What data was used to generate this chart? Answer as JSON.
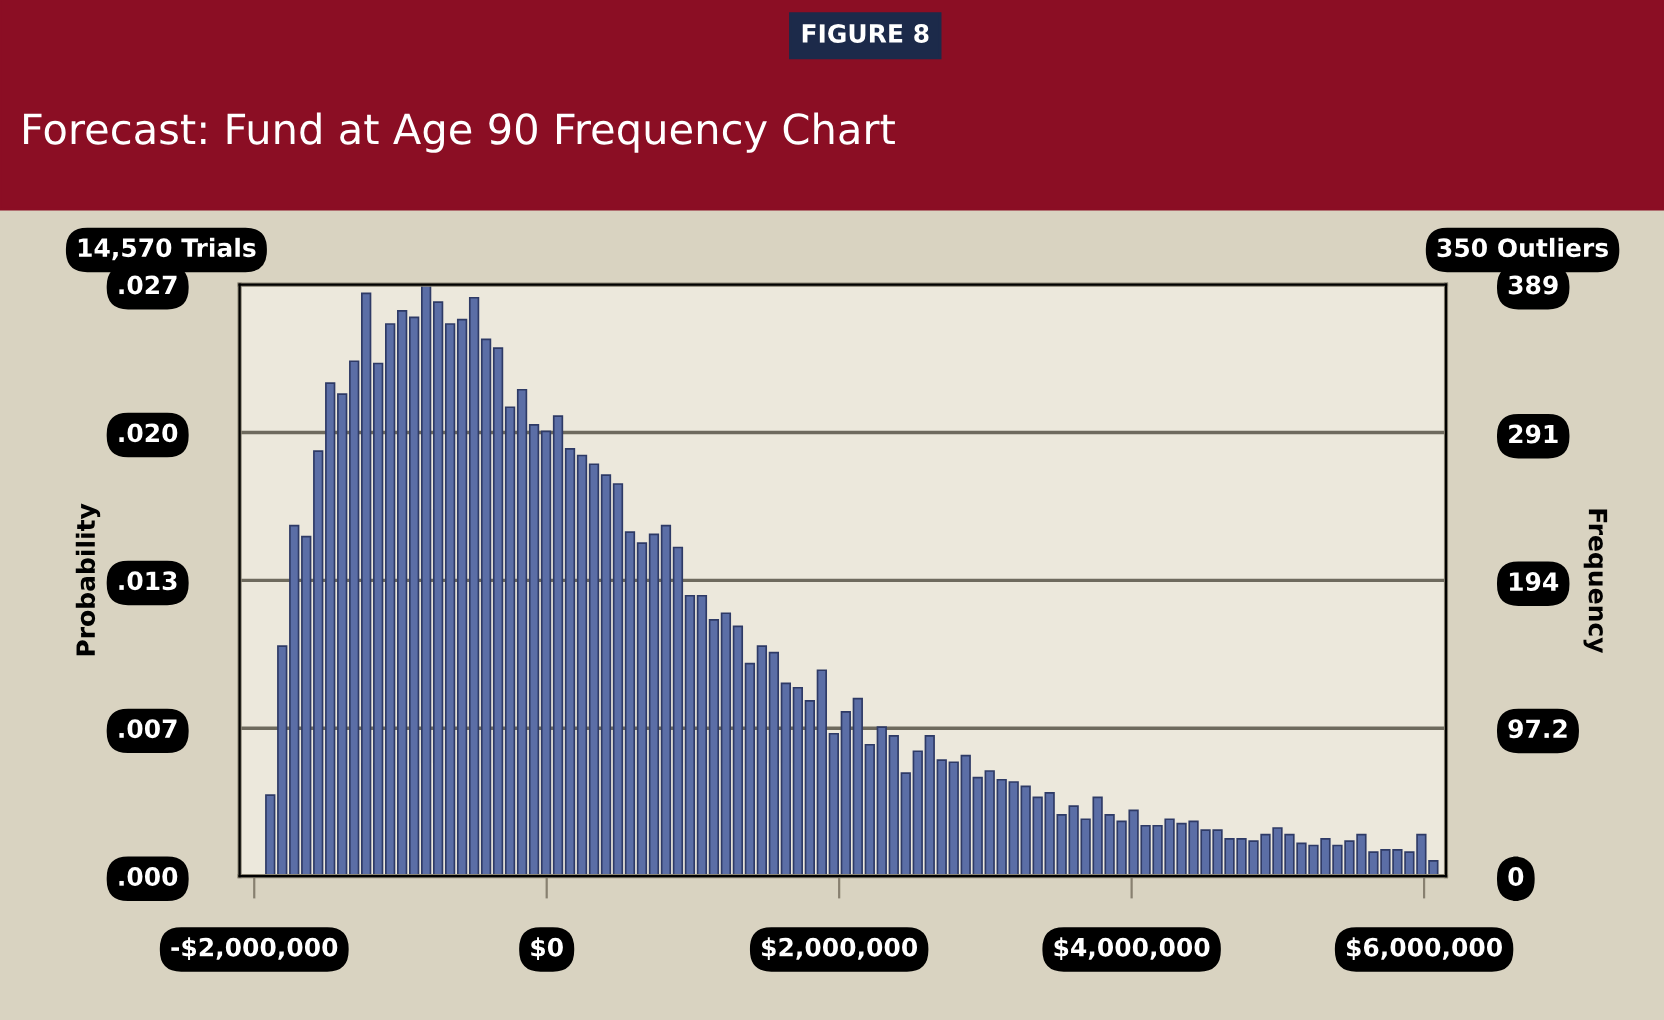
{
  "chart_data": {
    "type": "histogram",
    "title": "Forecast: Fund at Age 90 Frequency Chart",
    "annotations": [
      "FIGURE 8",
      "14,570 Trials",
      "350 Outliers"
    ],
    "ylabel": "Probability",
    "y2label": "Frequency",
    "bins": [
      -1920000,
      -1838000,
      -1756000,
      -1674000,
      -1592000,
      -1510000,
      -1428000,
      -1346000,
      -1264000,
      -1182000,
      -1100000,
      -1018000,
      -936000,
      -854000,
      -772000,
      -690000,
      -608000,
      -526000,
      -444000,
      -362000,
      -280000,
      -198000,
      -116000,
      -34000,
      48000,
      130000,
      212000,
      294000,
      376000,
      458000,
      540000,
      622000,
      704000,
      786000,
      868000,
      950000,
      1032000,
      1114000,
      1196000,
      1278000,
      1360000,
      1442000,
      1524000,
      1606000,
      1688000,
      1770000,
      1852000,
      1934000,
      2016000,
      2098000,
      2180000,
      2262000,
      2344000,
      2426000,
      2508000,
      2590000,
      2672000,
      2754000,
      2836000,
      2918000,
      3000000,
      3082000,
      3164000,
      3246000,
      3328000,
      3410000,
      3492000,
      3574000,
      3656000,
      3738000,
      3820000,
      3902000,
      3984000,
      4066000,
      4148000,
      4230000,
      4312000,
      4394000,
      4476000,
      4558000,
      4640000,
      4722000,
      4804000,
      4886000,
      4968000,
      5050000,
      5132000,
      5214000,
      5296000,
      5378000,
      5460000,
      5542000,
      5624000,
      5706000,
      5788000,
      5870000,
      5952000,
      6034000,
      6116000
    ],
    "values": [
      0.0037,
      0.0105,
      0.016,
      0.0155,
      0.0194,
      0.0225,
      0.022,
      0.0235,
      0.0266,
      0.0234,
      0.0252,
      0.0258,
      0.0255,
      0.027,
      0.0262,
      0.0252,
      0.0254,
      0.0264,
      0.0245,
      0.0241,
      0.0214,
      0.0222,
      0.0206,
      0.0203,
      0.021,
      0.0195,
      0.0192,
      0.0188,
      0.0183,
      0.0179,
      0.0157,
      0.0152,
      0.0156,
      0.016,
      0.015,
      0.0128,
      0.0128,
      0.0117,
      0.012,
      0.0114,
      0.0097,
      0.0105,
      0.0102,
      0.0088,
      0.0086,
      0.008,
      0.0094,
      0.0065,
      0.0075,
      0.0081,
      0.006,
      0.0068,
      0.0064,
      0.0047,
      0.0057,
      0.0064,
      0.0053,
      0.0052,
      0.0055,
      0.0045,
      0.0048,
      0.0044,
      0.0043,
      0.0041,
      0.0036,
      0.0038,
      0.0028,
      0.0032,
      0.0026,
      0.0036,
      0.0028,
      0.0025,
      0.003,
      0.0023,
      0.0023,
      0.0026,
      0.0024,
      0.0025,
      0.0021,
      0.0021,
      0.0017,
      0.0017,
      0.0016,
      0.0019,
      0.0022,
      0.0019,
      0.0015,
      0.0014,
      0.0017,
      0.0014,
      0.0016,
      0.0019,
      0.0011,
      0.0012,
      0.0012,
      0.0011,
      0.0019,
      0.0007
    ],
    "color": "#5b6ea6",
    "xlim": [
      -2100000,
      6150000
    ],
    "xticks": [
      {
        "value": -2000000,
        "label": "-$2,000,000"
      },
      {
        "value": 0,
        "label": "$0"
      },
      {
        "value": 2000000,
        "label": "$2,000,000"
      },
      {
        "value": 4000000,
        "label": "$4,000,000"
      },
      {
        "value": 6000000,
        "label": "$6,000,000"
      }
    ],
    "ylim": [
      0,
      0.027
    ],
    "yticks": [
      {
        "value": 0,
        "label": ".000"
      },
      {
        "value": 0.00675,
        "label": ".007"
      },
      {
        "value": 0.0135,
        "label": ".013"
      },
      {
        "value": 0.02025,
        "label": ".020"
      },
      {
        "value": 0.027,
        "label": ".027"
      }
    ],
    "y2lim": [
      0,
      389
    ],
    "y2ticks": [
      0,
      97.2,
      194,
      291,
      389
    ],
    "grid": "y"
  }
}
